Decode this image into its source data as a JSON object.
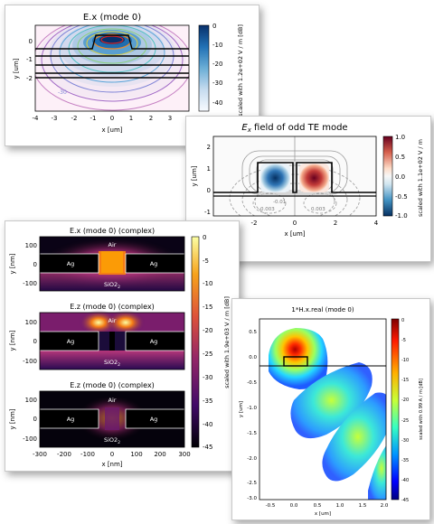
{
  "colors": {
    "card_shadow": "#9a9a9a",
    "frame": "#000000"
  },
  "chart_data": [
    {
      "type": "heatmap",
      "title": "E.x (mode 0)",
      "xlabel": "x [um]",
      "ylabel": "y [um]",
      "xlim": [
        -4,
        4
      ],
      "ylim": [
        -2.5,
        0.6
      ],
      "xticks": [
        "-4",
        "-3",
        "-2",
        "-1",
        "0",
        "1",
        "2",
        "3",
        "4"
      ],
      "yticks": [
        "0",
        "-1",
        "-2"
      ],
      "colorbar": {
        "label": "scaled with 1.2e+02 V / m [dB]",
        "ticks": [
          "0",
          "-10",
          "-20",
          "-30",
          "-40"
        ],
        "range": [
          -45,
          0
        ],
        "colormap": "Blues"
      },
      "contour_labels": [
        "-10",
        "-20",
        "-30"
      ]
    },
    {
      "type": "heatmap",
      "title": "Ex field of odd TE mode",
      "title_sub": "x",
      "title_main": "E",
      "title_rest": " field of odd TE mode",
      "xlabel": "x [um]",
      "ylabel": "y [um]",
      "xlim": [
        -4,
        4
      ],
      "ylim": [
        -1.2,
        2.5
      ],
      "xticks": [
        "-4",
        "-2",
        "0",
        "2",
        "4"
      ],
      "yticks": [
        "2",
        "1",
        "0",
        "-1"
      ],
      "colorbar": {
        "label": "scaled with 1.1e+02 V / m",
        "ticks": [
          "1.0",
          "0.5",
          "0.0",
          "-0.5",
          "-1.0"
        ],
        "range": [
          -1,
          1
        ],
        "colormap": "RdBu"
      },
      "contour_labels": [
        "-0.003",
        "-0.01",
        "0.003"
      ]
    },
    {
      "type": "heatmap",
      "panels": [
        {
          "title": "E.x (mode 0) (complex)"
        },
        {
          "title": "E.z (mode 0) (complex)"
        },
        {
          "title": "E.z (mode 0) (complex)"
        }
      ],
      "regions": [
        "Air",
        "Ag",
        "Ag",
        "SiO2"
      ],
      "region_sub": "2",
      "xlabel": "x [nm]",
      "ylabel": "y [nm]",
      "xlim": [
        -300,
        300
      ],
      "ylim": [
        -120,
        130
      ],
      "xticks": [
        "-300",
        "-200",
        "-100",
        "0",
        "100",
        "200",
        "300"
      ],
      "yticks": [
        "100",
        "0",
        "-100"
      ],
      "colorbar": {
        "label": "scaled with 1.9e+03 V / m [dB]",
        "ticks": [
          "0",
          "-5",
          "-10",
          "-15",
          "-20",
          "-25",
          "-30",
          "-35",
          "-40",
          "-45"
        ],
        "range": [
          -45,
          0
        ],
        "colormap": "inferno"
      }
    },
    {
      "type": "heatmap",
      "title": "1*H.x.real (mode 0)",
      "xlabel": "x [um]",
      "ylabel": "y [um]",
      "xlim": [
        -0.75,
        2.3
      ],
      "ylim": [
        -3.0,
        0.75
      ],
      "xticks": [
        "-0.5",
        "0.0",
        "0.5",
        "1.0",
        "1.5",
        "2.0"
      ],
      "yticks": [
        "0.5",
        "0.0",
        "-0.5",
        "-1.0",
        "-1.5",
        "-2.0",
        "-2.5",
        "-3.0"
      ],
      "colorbar": {
        "label": "scaled with 0.99 A / m [dB]",
        "ticks": [
          "0",
          "-5",
          "-10",
          "-15",
          "-20",
          "-25",
          "-30",
          "-35",
          "-40",
          "-45"
        ],
        "range": [
          -45,
          0
        ],
        "colormap": "jet"
      }
    }
  ]
}
